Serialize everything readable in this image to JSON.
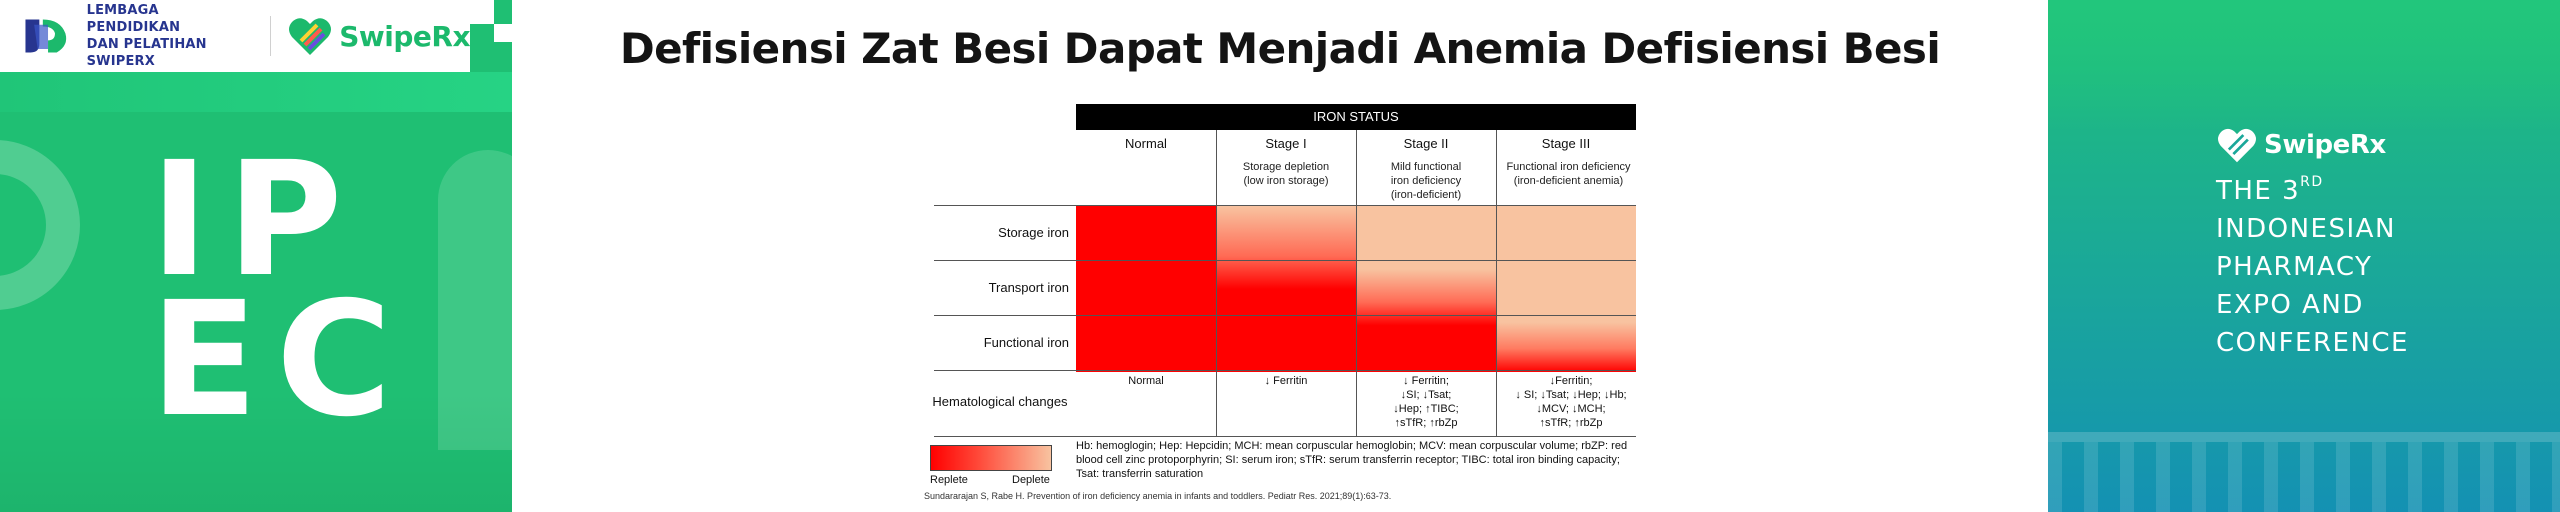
{
  "left": {
    "org_line1": "LEMBAGA PENDIDIKAN",
    "org_line2": "DAN PELATIHAN SWIPERX",
    "brand": "SwipeRx",
    "ipec_line1": "IP",
    "ipec_line2": "EC"
  },
  "slide": {
    "title": "Defisiensi Zat Besi Dapat Menjadi Anemia Defisiensi Besi"
  },
  "figure": {
    "status_bar": "IRON STATUS",
    "stages": [
      {
        "name": "Normal",
        "sub": []
      },
      {
        "name": "Stage I",
        "sub": [
          "Storage depletion",
          "(low iron storage)"
        ]
      },
      {
        "name": "Stage II",
        "sub": [
          "Mild functional",
          "iron deficiency",
          "(iron-deficient)"
        ]
      },
      {
        "name": "Stage III",
        "sub": [
          "Functional iron deficiency",
          "(iron-deficient anemia)"
        ]
      }
    ],
    "rows": [
      "Storage iron",
      "Transport iron",
      "Functional iron"
    ],
    "hematological_label": "Hematological changes",
    "hematological": [
      [
        "Normal"
      ],
      [
        "↓ Ferritin"
      ],
      [
        "↓ Ferritin;",
        "↓SI; ↓Tsat;",
        "↓Hep; ↑TIBC;",
        "↑sTfR; ↑rbZp"
      ],
      [
        "↓Ferritin;",
        "↓ SI; ↓Tsat; ↓Hep; ↓Hb;",
        "↓MCV; ↓MCH;",
        "↑sTfR; ↑rbZp"
      ]
    ],
    "legend_left": "Replete",
    "legend_right": "Deplete",
    "abbreviations": "Hb: hemoglogin; Hep: Hepcidin; MCH: mean corpuscular hemoglobin; MCV: mean corpuscular volume; rbZP: red blood cell zinc protoporphyrin; SI: serum iron; sTfR: serum transferrin receptor; TIBC: total iron binding capacity; Tsat: transferrin saturation",
    "citation": "Sundararajan S, Rabe H. Prevention of iron deficiency anemia in infants and toddlers. Pediatr Res. 2021;89(1):63-73.",
    "colors": {
      "replete": "#ff0000",
      "deplete": "#f8c3a0"
    }
  },
  "right": {
    "brand": "SwipeRx",
    "line1_main": "THE 3",
    "line1_sup": "RD",
    "line2": "INDONESIAN",
    "line3": "PHARMACY",
    "line4": "EXPO AND",
    "line5": "CONFERENCE"
  }
}
